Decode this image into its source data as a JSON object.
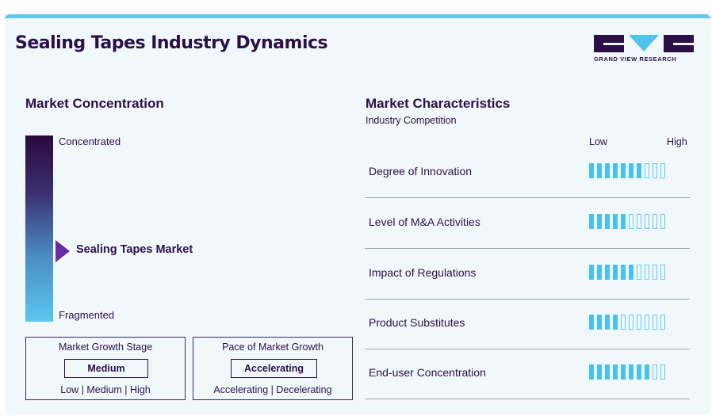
{
  "header": {
    "title": "Sealing Tapes Industry Dynamics",
    "logo_text": "GRAND VIEW RESEARCH"
  },
  "concentration": {
    "heading": "Market Concentration",
    "top_label": "Concentrated",
    "bottom_label": "Fragmented",
    "market_label": "Sealing Tapes Market",
    "gradient_colors": [
      "#2a0a3e",
      "#5cc8f0"
    ],
    "marker_color": "#6b2aa0"
  },
  "growth_stage": {
    "title": "Market Growth Stage",
    "value": "Medium",
    "options": "Low | Medium | High"
  },
  "pace": {
    "title": "Pace of Market Growth",
    "value": "Accelerating",
    "options": "Accelerating | Decelerating"
  },
  "characteristics": {
    "heading": "Market Characteristics",
    "subheading": "Industry Competition",
    "low_label": "Low",
    "high_label": "High",
    "max_level": 10,
    "on_color": "#45c3ee",
    "rows": [
      {
        "label": "Degree of Innovation",
        "level": 7
      },
      {
        "label": "Level of M&A Activities",
        "level": 5
      },
      {
        "label": "Impact of Regulations",
        "level": 6
      },
      {
        "label": "Product Substitutes",
        "level": 4
      },
      {
        "label": "End-user Concentration",
        "level": 8
      }
    ]
  }
}
